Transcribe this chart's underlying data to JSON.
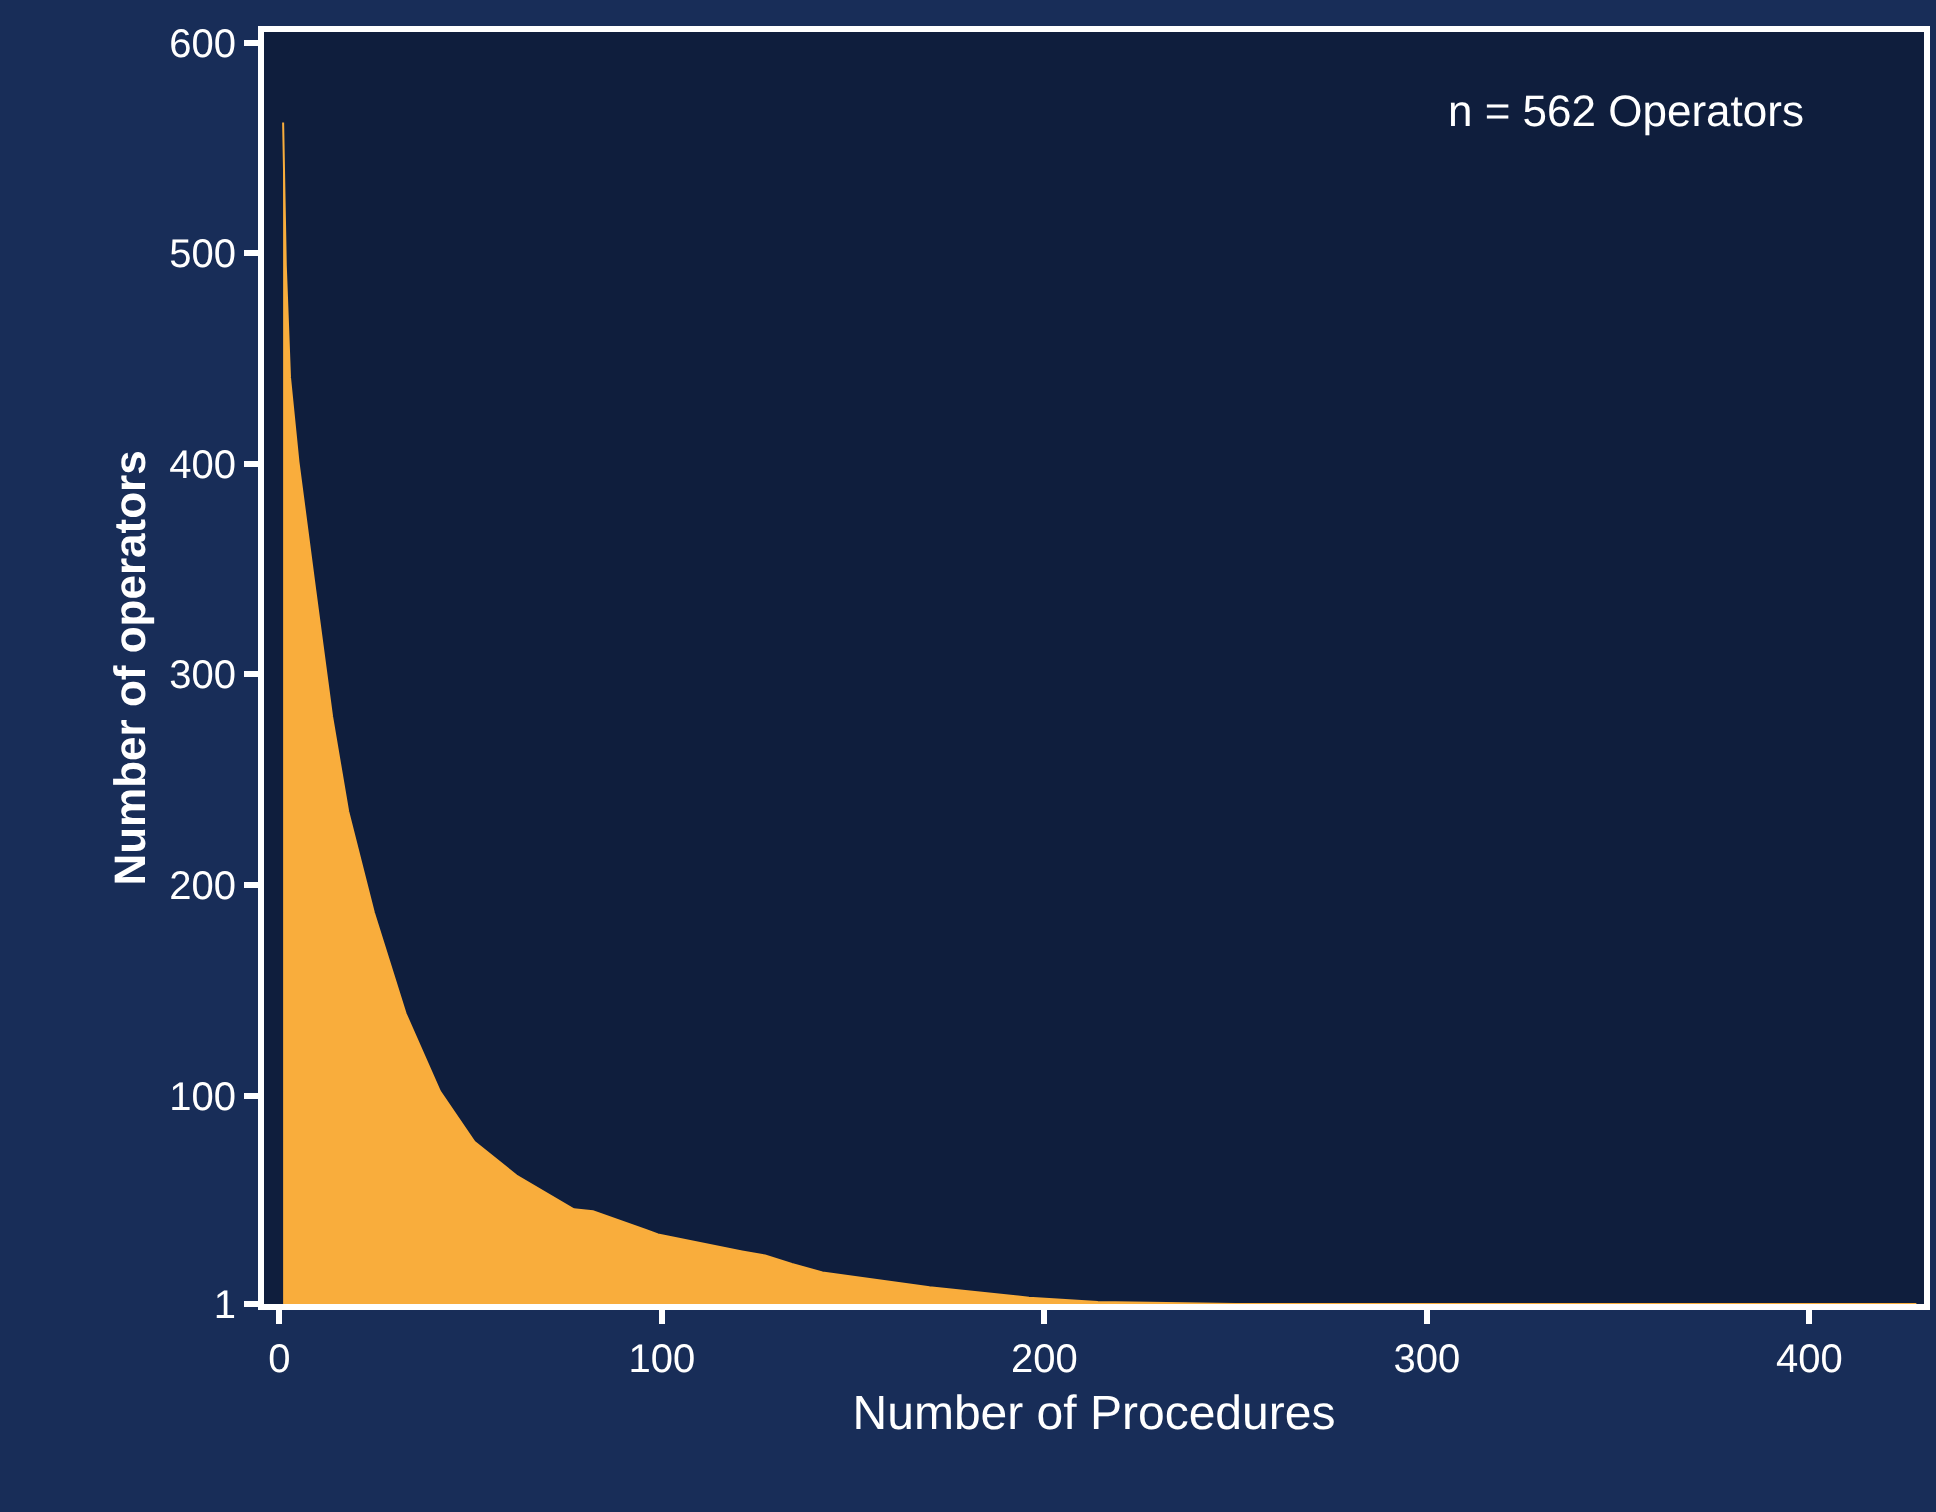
{
  "chart_data": {
    "type": "area",
    "xlabel": "Number of Procedures",
    "ylabel": "Number of operators",
    "annotations": [
      "n = 562 Operators"
    ],
    "x": [
      1,
      1.7,
      2.8,
      5,
      9.4,
      13.8,
      18,
      24.7,
      33,
      42,
      51,
      62,
      77,
      82,
      96,
      99,
      121,
      127,
      134,
      142,
      170,
      196,
      214,
      250,
      300,
      350,
      428
    ],
    "series": [
      {
        "color": "#f9ad3c",
        "values": [
          562,
          494,
          441,
          401,
          340,
          280,
          235,
          187,
          139,
          102,
          78,
          62,
          46,
          45,
          36,
          34,
          26,
          24,
          20,
          16,
          9,
          4,
          2,
          1,
          1,
          1,
          1
        ]
      }
    ],
    "xlim": [
      -4,
      430
    ],
    "xticks": [
      0,
      100,
      200,
      300,
      400
    ],
    "ylim": [
      1,
      605
    ],
    "yticks": [
      1,
      100,
      200,
      300,
      400,
      500,
      600
    ]
  }
}
